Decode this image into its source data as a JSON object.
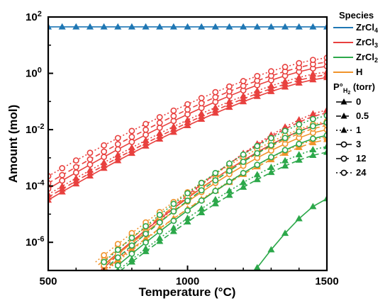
{
  "chart_data": {
    "type": "line",
    "xlabel": "Temperature (°C)",
    "ylabel": "Amount (mol)",
    "xlim": [
      500,
      1500
    ],
    "ylim_log10": [
      -7,
      2
    ],
    "yscale": "log",
    "x_ticks": [
      "500",
      "1000",
      "1500"
    ],
    "y_ticks": [
      {
        "base": "10",
        "exp": "2",
        "value": 100
      },
      {
        "base": "10",
        "exp": "0",
        "value": 1
      },
      {
        "base": "10",
        "exp": "-2",
        "value": 0.01
      },
      {
        "base": "10",
        "exp": "-4",
        "value": 0.0001
      },
      {
        "base": "10",
        "exp": "-6",
        "value": 1e-06
      }
    ],
    "grid": false,
    "legend_position": "right",
    "colors": {
      "ZrCl4": "#1f77b4",
      "ZrCl3": "#e8403e",
      "ZrCl2": "#2ca84a",
      "H": "#f0932b"
    },
    "legend": {
      "species_title": "Species",
      "species": [
        {
          "key": "ZrCl4",
          "base": "ZrCl",
          "sub": "4"
        },
        {
          "key": "ZrCl3",
          "base": "ZrCl",
          "sub": "3"
        },
        {
          "key": "ZrCl2",
          "base": "ZrCl",
          "sub": "2"
        },
        {
          "key": "H",
          "base": "H",
          "sub": ""
        }
      ],
      "pressure_title": {
        "text": "P°",
        "sub": "H",
        "subsub": "2",
        "suffix": " (torr)"
      },
      "pressures": [
        {
          "label": "0",
          "marker": "triangle",
          "dash": "solid"
        },
        {
          "label": "0.5",
          "marker": "triangle",
          "dash": "dashed"
        },
        {
          "label": "1",
          "marker": "triangle",
          "dash": "dotted"
        },
        {
          "label": "3",
          "marker": "circle",
          "dash": "solid"
        },
        {
          "label": "12",
          "marker": "circle",
          "dash": "dashed"
        },
        {
          "label": "24",
          "marker": "circle",
          "dash": "dotted"
        }
      ]
    },
    "series": [
      {
        "species": "ZrCl4",
        "pressure": "0",
        "x_start": 500,
        "x_end": 1500,
        "log10_start": 1.65,
        "log10_end": 1.65
      },
      {
        "species": "ZrCl3",
        "pressure": "0",
        "x_start": 500,
        "x_end": 1500,
        "log10_start": -4.5,
        "log10_end": -0.15
      },
      {
        "species": "ZrCl3",
        "pressure": "0.5",
        "x_start": 500,
        "x_end": 1500,
        "log10_start": -4.4,
        "log10_end": -0.05
      },
      {
        "species": "ZrCl3",
        "pressure": "1",
        "x_start": 500,
        "x_end": 1500,
        "log10_start": -4.3,
        "log10_end": 0.05
      },
      {
        "species": "ZrCl3",
        "pressure": "3",
        "x_start": 500,
        "x_end": 1500,
        "log10_start": -4.1,
        "log10_end": 0.25
      },
      {
        "species": "ZrCl3",
        "pressure": "12",
        "x_start": 500,
        "x_end": 1500,
        "log10_start": -3.9,
        "log10_end": 0.4
      },
      {
        "species": "ZrCl3",
        "pressure": "24",
        "x_start": 500,
        "x_end": 1500,
        "log10_start": -3.65,
        "log10_end": 0.55
      },
      {
        "species": "ZrCl3",
        "pressure": "0",
        "x_start": 700,
        "x_end": 1500,
        "log10_start": -6.8,
        "log10_end": -1.75,
        "group": "low"
      },
      {
        "species": "ZrCl3",
        "pressure": "0.5",
        "x_start": 690,
        "x_end": 1500,
        "log10_start": -7,
        "log10_end": -1.4,
        "group": "low"
      },
      {
        "species": "ZrCl3",
        "pressure": "1",
        "x_start": 710,
        "x_end": 1500,
        "log10_start": -7,
        "log10_end": -1.3,
        "group": "low"
      },
      {
        "species": "H",
        "pressure": "0.5",
        "x_start": 700,
        "x_end": 1500,
        "log10_start": -7,
        "log10_end": -2.35
      },
      {
        "species": "H",
        "pressure": "1",
        "x_start": 710,
        "x_end": 1500,
        "log10_start": -7,
        "log10_end": -2.25
      },
      {
        "species": "H",
        "pressure": "3",
        "x_start": 690,
        "x_end": 1500,
        "log10_start": -6.9,
        "log10_end": -2.0
      },
      {
        "species": "H",
        "pressure": "12",
        "x_start": 680,
        "x_end": 1500,
        "log10_start": -6.8,
        "log10_end": -1.85
      },
      {
        "species": "H",
        "pressure": "24",
        "x_start": 670,
        "x_end": 1500,
        "log10_start": -6.7,
        "log10_end": -1.7
      },
      {
        "species": "ZrCl2",
        "pressure": "0",
        "x_start": 1250,
        "x_end": 1500,
        "log10_start": -6.9,
        "log10_end": -4.45
      },
      {
        "species": "ZrCl2",
        "pressure": "0.5",
        "x_start": 760,
        "x_end": 1500,
        "log10_start": -7,
        "log10_end": -2.8
      },
      {
        "species": "ZrCl2",
        "pressure": "1",
        "x_start": 750,
        "x_end": 1500,
        "log10_start": -7,
        "log10_end": -2.6
      },
      {
        "species": "ZrCl2",
        "pressure": "3",
        "x_start": 740,
        "x_end": 1500,
        "log10_start": -6.9,
        "log10_end": -2.2
      },
      {
        "species": "ZrCl2",
        "pressure": "12",
        "x_start": 720,
        "x_end": 1500,
        "log10_start": -6.8,
        "log10_end": -1.75
      },
      {
        "species": "ZrCl2",
        "pressure": "24",
        "x_start": 700,
        "x_end": 1500,
        "log10_start": -6.7,
        "log10_end": -1.5
      }
    ]
  }
}
